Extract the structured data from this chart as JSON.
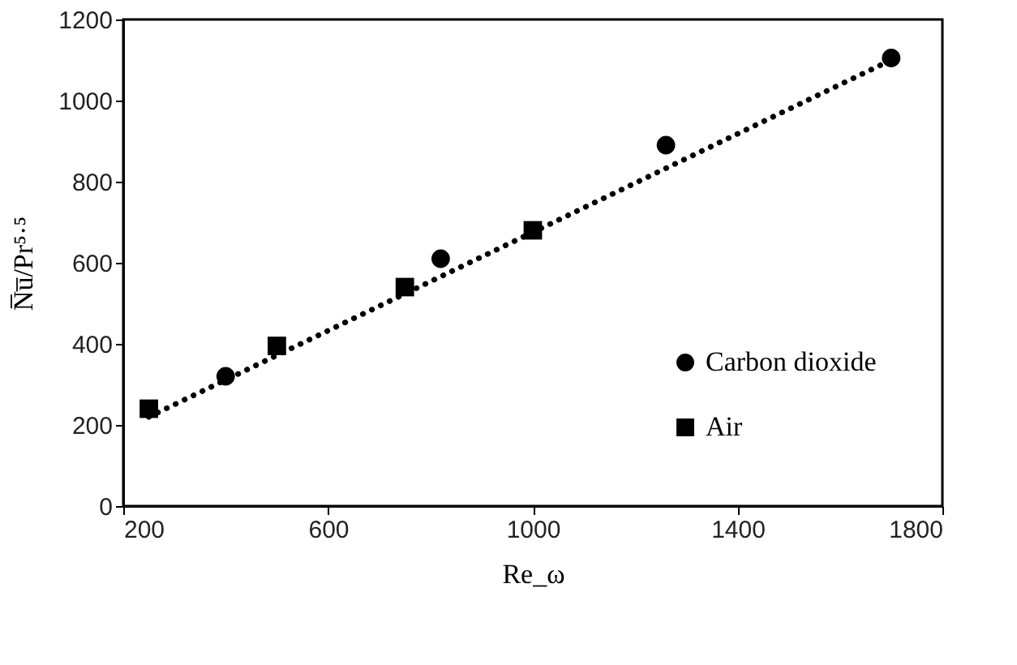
{
  "chart_data": {
    "type": "scatter",
    "xlabel": "Re_ω",
    "ylabel": "N̅u̅/Pr⁵·⁵",
    "xlim": [
      200,
      1800
    ],
    "xticks": [
      200,
      600,
      1000,
      1400,
      1800
    ],
    "ylim": [
      0,
      1200
    ],
    "yticks": [
      0,
      200,
      400,
      600,
      800,
      1000,
      1200
    ],
    "grid": false,
    "legend": "bottom right",
    "series": [
      {
        "name": "Carbon dioxide",
        "color": "#000000",
        "marker": "circle",
        "x": [
          400,
          820,
          1260,
          1700
        ],
        "values": [
          320,
          610,
          890,
          1105
        ]
      },
      {
        "name": "Air",
        "color": "#000000",
        "marker": "square",
        "x": [
          250,
          500,
          750,
          1000
        ],
        "values": [
          240,
          395,
          540,
          680
        ]
      },
      {
        "type": "line",
        "color": "#000000",
        "line_style": "dotted",
        "marker": "none",
        "x": [
          250,
          1700
        ],
        "values": [
          220,
          1100
        ]
      }
    ]
  }
}
